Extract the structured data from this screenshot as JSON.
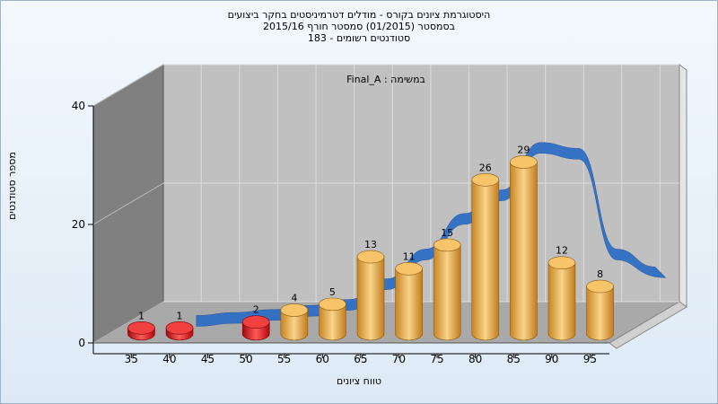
{
  "title": {
    "line1": "היסטוגרמת ציונים בקורס - מודלים דטרמיניסטים בחקר ביצועים",
    "line2": "בסמסטר  (01/2015)  סמסטר חורף 2015/16",
    "line3": "סטודנטים רשומים - 183"
  },
  "inner_label": "במשימה : Final_A",
  "chart_data": {
    "type": "bar",
    "title": "היסטוגרמת ציונים בקורס - מודלים דטרמיניסטים בחקר ביצועים",
    "xlabel": "טווח ציונים",
    "ylabel": "מספר סטודנטים",
    "x_ticks": [
      "35",
      "40",
      "45",
      "50",
      "55",
      "60",
      "65",
      "70",
      "75",
      "80",
      "85",
      "90",
      "95"
    ],
    "y_ticks": [
      "0",
      "20",
      "40"
    ],
    "ylim": [
      0,
      40
    ],
    "bars": [
      {
        "x": 35,
        "value": 1,
        "color": "red"
      },
      {
        "x": 40,
        "value": 1,
        "color": "red"
      },
      {
        "x": 50,
        "value": 2,
        "color": "red"
      },
      {
        "x": 55,
        "value": 4,
        "color": "orange"
      },
      {
        "x": 60,
        "value": 5,
        "color": "orange"
      },
      {
        "x": 65,
        "value": 13,
        "color": "orange"
      },
      {
        "x": 70,
        "value": 11,
        "color": "orange"
      },
      {
        "x": 75,
        "value": 15,
        "color": "orange"
      },
      {
        "x": 80,
        "value": 26,
        "color": "orange"
      },
      {
        "x": 85,
        "value": 29,
        "color": "orange"
      },
      {
        "x": 90,
        "value": 12,
        "color": "orange"
      },
      {
        "x": 95,
        "value": 8,
        "color": "orange"
      }
    ],
    "curve": {
      "type": "ribbon",
      "x": [
        40,
        45,
        50,
        55,
        60,
        65,
        70,
        75,
        80,
        85,
        90,
        95,
        100
      ],
      "y": [
        0.8,
        1.3,
        1.8,
        2.5,
        3.5,
        7,
        12,
        18,
        22,
        30,
        29,
        12,
        9
      ]
    },
    "colors": {
      "red": "#e0151b",
      "orange": "#efa838",
      "curve": "#2f6fc5",
      "back_wall": "#c0c0c0",
      "side_wall": "#808080",
      "floor": "#a9a9a9"
    },
    "grid": true
  }
}
